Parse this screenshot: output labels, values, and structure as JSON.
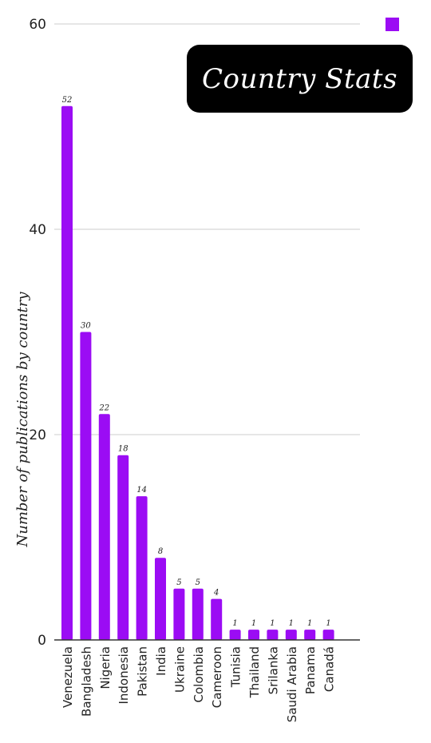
{
  "colors": {
    "bar": "#9b0cf4",
    "grid": "#cccccc",
    "axis": "#333333",
    "text": "#222222"
  },
  "chart_data": {
    "type": "bar",
    "title": "Country Stats",
    "xlabel": "",
    "ylabel": "Number of publications by country",
    "ylim": [
      0,
      60
    ],
    "yticks": [
      0,
      20,
      40,
      60
    ],
    "grid": true,
    "legend": "top-right",
    "categories": [
      "Venezuela",
      "Bangladesh",
      "Nigeria",
      "Indonesia",
      "Pakistan",
      "India",
      "Ukraine",
      "Colombia",
      "Cameroon",
      "Tunisia",
      "Thailand",
      "Srilanka",
      "Saudi Arabia",
      "Panama",
      "Canadá"
    ],
    "values": [
      52,
      30,
      22,
      18,
      14,
      8,
      5,
      5,
      4,
      1,
      1,
      1,
      1,
      1,
      1
    ]
  }
}
